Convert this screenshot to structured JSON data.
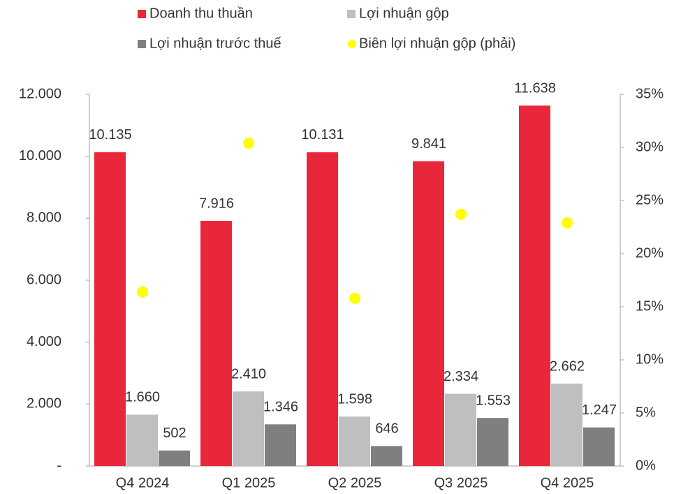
{
  "chart_data": {
    "type": "bar",
    "categories": [
      "Q4 2024",
      "Q1 2025",
      "Q2 2025",
      "Q3 2025",
      "Q4 2025"
    ],
    "series": [
      {
        "name": "Doanh thu thuần",
        "color": "#e8283a",
        "values": [
          10135,
          7916,
          10131,
          9841,
          11638
        ],
        "value_labels": [
          "10.135",
          "7.916",
          "10.131",
          "9.841",
          "11.638"
        ]
      },
      {
        "name": "Lợi nhuận gộp",
        "color": "#bfbfc2",
        "values": [
          1660,
          2410,
          1598,
          2334,
          2662
        ],
        "value_labels": [
          "1.660",
          "2.410",
          "1.598",
          "2.334",
          "2.662"
        ]
      },
      {
        "name": "Lợi nhuận trước thuế",
        "color": "#7f7f7f",
        "values": [
          502,
          1346,
          646,
          1553,
          1247
        ],
        "value_labels": [
          "502",
          "1.346",
          "646",
          "1.553",
          "1.247"
        ]
      },
      {
        "name": "Biên lợi nhuận gộp (phải)",
        "color": "#ffff00",
        "type": "scatter",
        "axis": "y2",
        "values": [
          16.4,
          30.4,
          15.8,
          23.7,
          22.9
        ]
      }
    ],
    "ylim": [
      0,
      12000
    ],
    "yticks": [
      {
        "value": 0,
        "label": "-"
      },
      {
        "value": 2000,
        "label": "2.000"
      },
      {
        "value": 4000,
        "label": "4.000"
      },
      {
        "value": 6000,
        "label": "6.000"
      },
      {
        "value": 8000,
        "label": "8.000"
      },
      {
        "value": 10000,
        "label": "10.000"
      },
      {
        "value": 12000,
        "label": "12.000"
      }
    ],
    "y2lim": [
      0,
      35
    ],
    "y2ticks": [
      {
        "value": 0,
        "label": "0%"
      },
      {
        "value": 5,
        "label": "5%"
      },
      {
        "value": 10,
        "label": "10%"
      },
      {
        "value": 15,
        "label": "15%"
      },
      {
        "value": 20,
        "label": "20%"
      },
      {
        "value": 25,
        "label": "25%"
      },
      {
        "value": 30,
        "label": "30%"
      },
      {
        "value": 35,
        "label": "35%"
      }
    ],
    "grid": false,
    "legend": "top"
  }
}
